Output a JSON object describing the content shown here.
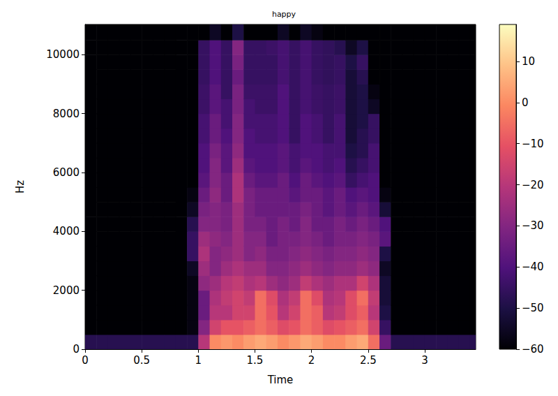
{
  "chart_data": {
    "type": "heatmap",
    "title": "happy",
    "x_label": "Time",
    "y_label": "Hz",
    "xlim": [
      0,
      3.45
    ],
    "xticks": [
      0,
      0.5,
      1,
      1.5,
      2,
      2.5,
      3
    ],
    "ylim": [
      0,
      11025
    ],
    "yticks": [
      0,
      2000,
      4000,
      6000,
      8000,
      10000
    ],
    "color": "magma",
    "x_bins": [
      0,
      0.1,
      0.2,
      0.3,
      0.4,
      0.5,
      0.6,
      0.7,
      0.8,
      0.9,
      1,
      1.1,
      1.2,
      1.3,
      1.4,
      1.5,
      1.6,
      1.7,
      1.8,
      1.9,
      2,
      2.1,
      2.2,
      2.3,
      2.4,
      2.5,
      2.6,
      2.7,
      2.8,
      2.9,
      3,
      3.1,
      3.2,
      3.3,
      3.4,
      3.45
    ],
    "y_bins": [
      0,
      500,
      1000,
      1500,
      2000,
      2500,
      3000,
      3500,
      4000,
      4500,
      5000,
      5500,
      6000,
      6500,
      7000,
      7500,
      8000,
      8500,
      9000,
      9500,
      10000,
      10500,
      11025
    ],
    "values": [
      [
        -48,
        -60,
        -60,
        -60,
        -60,
        -60,
        -60,
        -60,
        -60,
        -60,
        -60,
        -60,
        -60,
        -60,
        -60,
        -60,
        -60,
        -60,
        -60,
        -60,
        -60,
        -60
      ],
      [
        -48,
        -60,
        -60,
        -60,
        -60,
        -60,
        -60,
        -60,
        -60,
        -60,
        -60,
        -60,
        -60,
        -60,
        -60,
        -60,
        -60,
        -60,
        -60,
        -60,
        -60,
        -60
      ],
      [
        -48,
        -60,
        -60,
        -60,
        -60,
        -60,
        -60,
        -60,
        -60,
        -60,
        -60,
        -60,
        -60,
        -60,
        -60,
        -60,
        -60,
        -60,
        -60,
        -60,
        -60,
        -60
      ],
      [
        -48,
        -60,
        -60,
        -60,
        -60,
        -60,
        -60,
        -60,
        -60,
        -60,
        -60,
        -60,
        -60,
        -60,
        -60,
        -60,
        -60,
        -60,
        -60,
        -60,
        -60,
        -60
      ],
      [
        -48,
        -60,
        -60,
        -60,
        -60,
        -60,
        -60,
        -60,
        -60,
        -60,
        -60,
        -60,
        -60,
        -60,
        -60,
        -60,
        -60,
        -60,
        -60,
        -60,
        -60,
        -60
      ],
      [
        -48,
        -60,
        -60,
        -60,
        -60,
        -60,
        -60,
        -60,
        -60,
        -60,
        -60,
        -60,
        -60,
        -60,
        -60,
        -60,
        -60,
        -60,
        -60,
        -60,
        -60,
        -60
      ],
      [
        -48,
        -60,
        -60,
        -60,
        -60,
        -60,
        -60,
        -60,
        -60,
        -60,
        -60,
        -60,
        -60,
        -60,
        -60,
        -60,
        -60,
        -60,
        -60,
        -60,
        -60,
        -60
      ],
      [
        -48,
        -60,
        -60,
        -60,
        -60,
        -60,
        -60,
        -60,
        -60,
        -60,
        -60,
        -60,
        -60,
        -60,
        -60,
        -60,
        -60,
        -60,
        -60,
        -60,
        -60,
        -60
      ],
      [
        -48,
        -60,
        -60,
        -60,
        -60,
        -60,
        -60,
        -60,
        -60,
        -60,
        -60,
        -60,
        -60,
        -60,
        -60,
        -60,
        -60,
        -60,
        -60,
        -60,
        -60,
        -60
      ],
      [
        -48,
        -58,
        -58,
        -58,
        -58,
        -55,
        -45,
        -45,
        -48,
        -55,
        -58,
        -60,
        -60,
        -60,
        -60,
        -60,
        -60,
        -60,
        -60,
        -60,
        -60,
        -60
      ],
      [
        -20,
        -30,
        -35,
        -35,
        -28,
        -25,
        -22,
        -25,
        -30,
        -32,
        -35,
        -38,
        -40,
        -40,
        -42,
        -42,
        -44,
        -44,
        -45,
        -45,
        -45,
        -60
      ],
      [
        0,
        -15,
        -20,
        -22,
        -25,
        -30,
        -30,
        -28,
        -30,
        -30,
        -28,
        -30,
        -30,
        -32,
        -35,
        -35,
        -38,
        -38,
        -40,
        -40,
        -40,
        -55
      ],
      [
        2,
        -10,
        -20,
        -18,
        -20,
        -25,
        -28,
        -30,
        -32,
        -32,
        -35,
        -35,
        -38,
        -38,
        -40,
        -42,
        -42,
        -45,
        -45,
        -45,
        -45,
        -60
      ],
      [
        0,
        -10,
        -15,
        -15,
        -18,
        -22,
        -25,
        -25,
        -25,
        -25,
        -22,
        -22,
        -25,
        -28,
        -30,
        -30,
        -32,
        -32,
        -35,
        -32,
        -30,
        -50
      ],
      [
        3,
        -8,
        -15,
        -18,
        -22,
        -25,
        -30,
        -30,
        -32,
        -32,
        -32,
        -35,
        -38,
        -40,
        -40,
        -42,
        -42,
        -44,
        -45,
        -45,
        -45,
        -60
      ],
      [
        5,
        -5,
        -5,
        -5,
        -20,
        -25,
        -28,
        -30,
        -32,
        -35,
        -35,
        -38,
        -40,
        -40,
        -42,
        -42,
        -44,
        -44,
        -45,
        -45,
        -45,
        -60
      ],
      [
        3,
        -8,
        -10,
        -12,
        -25,
        -30,
        -32,
        -35,
        -35,
        -35,
        -35,
        -38,
        -40,
        -40,
        -42,
        -42,
        -44,
        -44,
        -45,
        -45,
        -44,
        -60
      ],
      [
        0,
        -12,
        -20,
        -22,
        -28,
        -30,
        -32,
        -32,
        -32,
        -35,
        -35,
        -35,
        -38,
        -38,
        -40,
        -40,
        -40,
        -40,
        -42,
        -42,
        -42,
        -55
      ],
      [
        2,
        -10,
        -15,
        -18,
        -25,
        -28,
        -30,
        -32,
        -35,
        -35,
        -38,
        -40,
        -42,
        -42,
        -45,
        -45,
        -45,
        -45,
        -45,
        -45,
        -45,
        -60
      ],
      [
        5,
        -5,
        -5,
        -5,
        -18,
        -25,
        -28,
        -30,
        -30,
        -32,
        -35,
        -35,
        -38,
        -40,
        -40,
        -40,
        -42,
        -42,
        -42,
        -42,
        -42,
        -55
      ],
      [
        3,
        -8,
        -8,
        -12,
        -22,
        -28,
        -30,
        -32,
        -35,
        -35,
        -35,
        -38,
        -40,
        -40,
        -42,
        -42,
        -44,
        -44,
        -45,
        -45,
        -45,
        -58
      ],
      [
        0,
        -12,
        -20,
        -22,
        -25,
        -30,
        -32,
        -35,
        -35,
        -38,
        -38,
        -40,
        -42,
        -42,
        -45,
        -45,
        -45,
        -45,
        -46,
        -46,
        -46,
        -60
      ],
      [
        0,
        -10,
        -18,
        -20,
        -22,
        -28,
        -30,
        -32,
        -32,
        -35,
        -35,
        -38,
        -40,
        -42,
        -42,
        -42,
        -44,
        -44,
        -45,
        -45,
        -48,
        -60
      ],
      [
        3,
        -8,
        -12,
        -12,
        -22,
        -28,
        -30,
        -32,
        -35,
        -38,
        -40,
        -45,
        -48,
        -50,
        -52,
        -52,
        -52,
        -52,
        -52,
        -50,
        -55,
        -60
      ],
      [
        5,
        -5,
        -8,
        -5,
        -15,
        -25,
        -28,
        -30,
        -32,
        -35,
        -38,
        -42,
        -45,
        -48,
        -48,
        -50,
        -50,
        -50,
        -48,
        -45,
        -50,
        -60
      ],
      [
        -5,
        -15,
        -20,
        -18,
        -22,
        -28,
        -30,
        -32,
        -35,
        -38,
        -40,
        -40,
        -42,
        -42,
        -45,
        -45,
        -55,
        -58,
        -60,
        -60,
        -60,
        -60
      ],
      [
        -35,
        -45,
        -50,
        -52,
        -52,
        -55,
        -50,
        -38,
        -40,
        -52,
        -58,
        -60,
        -60,
        -60,
        -60,
        -60,
        -60,
        -60,
        -60,
        -60,
        -60,
        -60
      ],
      [
        -48,
        -60,
        -60,
        -60,
        -60,
        -60,
        -60,
        -60,
        -60,
        -60,
        -60,
        -60,
        -60,
        -60,
        -60,
        -60,
        -60,
        -60,
        -60,
        -60,
        -60,
        -60
      ],
      [
        -48,
        -60,
        -60,
        -60,
        -60,
        -60,
        -60,
        -60,
        -60,
        -60,
        -60,
        -60,
        -60,
        -60,
        -60,
        -60,
        -60,
        -60,
        -60,
        -60,
        -60,
        -60
      ],
      [
        -48,
        -60,
        -60,
        -60,
        -60,
        -60,
        -60,
        -60,
        -60,
        -60,
        -60,
        -60,
        -60,
        -60,
        -60,
        -60,
        -60,
        -60,
        -60,
        -60,
        -60,
        -60
      ],
      [
        -48,
        -60,
        -60,
        -60,
        -60,
        -60,
        -60,
        -60,
        -60,
        -60,
        -60,
        -60,
        -60,
        -60,
        -60,
        -60,
        -60,
        -60,
        -60,
        -60,
        -60,
        -60
      ],
      [
        -48,
        -60,
        -60,
        -60,
        -60,
        -60,
        -60,
        -60,
        -60,
        -60,
        -60,
        -60,
        -60,
        -60,
        -60,
        -60,
        -60,
        -60,
        -60,
        -60,
        -60,
        -60
      ],
      [
        -48,
        -60,
        -60,
        -60,
        -60,
        -60,
        -60,
        -60,
        -60,
        -60,
        -60,
        -60,
        -60,
        -60,
        -60,
        -60,
        -60,
        -60,
        -60,
        -60,
        -60,
        -60
      ],
      [
        -48,
        -60,
        -60,
        -60,
        -60,
        -60,
        -60,
        -60,
        -60,
        -60,
        -60,
        -60,
        -60,
        -60,
        -60,
        -60,
        -60,
        -60,
        -60,
        -60,
        -60,
        -60
      ],
      [
        -48,
        -60,
        -60,
        -60,
        -60,
        -60,
        -60,
        -60,
        -60,
        -60,
        -60,
        -60,
        -60,
        -60,
        -60,
        -60,
        -60,
        -60,
        -60,
        -60,
        -60,
        -60
      ]
    ],
    "colorbar": {
      "range": [
        -60,
        19
      ],
      "ticks": [
        10,
        0,
        {
          "value": -10,
          "label": "−10"
        },
        {
          "value": -20,
          "label": "−20"
        },
        {
          "value": -30,
          "label": "−30"
        },
        {
          "value": -40,
          "label": "−40"
        },
        {
          "value": -50,
          "label": "−50"
        },
        {
          "value": -60,
          "label": "−60"
        }
      ]
    }
  }
}
